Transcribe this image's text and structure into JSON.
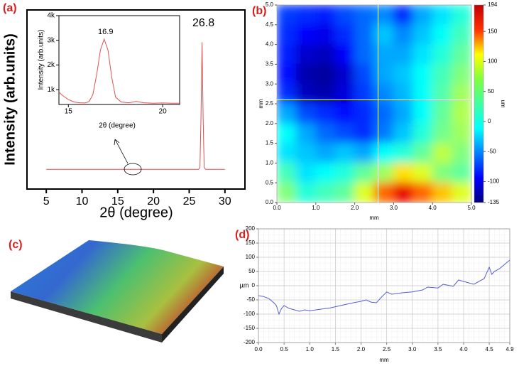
{
  "chart_data": [
    {
      "type": "line",
      "panel": "(a)",
      "x_label": "2θ (degree)",
      "y_label": "Intensity (arb.units)",
      "color": "#e05050",
      "x": [
        5,
        26.3,
        26.5,
        26.65,
        26.8,
        26.95,
        27.1,
        27.3,
        30
      ],
      "values": [
        11,
        11,
        12,
        40,
        82,
        40,
        12,
        11,
        11
      ],
      "xlim": [
        2.3,
        32.8
      ],
      "ylim": [
        0,
        100
      ],
      "xticks": [
        5,
        10,
        15,
        20,
        25,
        30
      ],
      "peak_label": "26.8",
      "inset": {
        "x_label": "2θ (degree)",
        "y_label": "Intensity (arb.units)",
        "color": "#e05050",
        "x": [
          14.5,
          14.7,
          15.0,
          15.3,
          15.6,
          15.9,
          16.1,
          16.3,
          16.5,
          16.7,
          16.9,
          17.1,
          17.3,
          17.5,
          17.8,
          18.2,
          18.6,
          19.0,
          19.5,
          20.0,
          20.5,
          20.9
        ],
        "values": [
          900,
          760,
          600,
          500,
          470,
          460,
          520,
          800,
          1600,
          2600,
          3050,
          2600,
          1500,
          700,
          500,
          470,
          520,
          470,
          450,
          460,
          450,
          450
        ],
        "xlim": [
          14.5,
          20.9
        ],
        "ylim": [
          400,
          4000
        ],
        "xticks": [
          15,
          20
        ],
        "yticks": [
          {
            "value": 1000,
            "label": "1k"
          },
          {
            "value": 2000,
            "label": "2k"
          },
          {
            "value": 3000,
            "label": "3k"
          },
          {
            "value": 4000,
            "label": "4k"
          }
        ],
        "peak_label": "16.9"
      }
    },
    {
      "type": "heatmap",
      "panel": "(b)",
      "x_label": "mm",
      "y_label": "mm",
      "colorbar_label": "um",
      "xlim": [
        0,
        5
      ],
      "ylim": [
        0,
        5
      ],
      "xticks": [
        {
          "value": 0,
          "label": "0.0"
        },
        {
          "value": 1,
          "label": "1.0"
        },
        {
          "value": 2,
          "label": "2.0"
        },
        {
          "value": 3,
          "label": "3.0"
        },
        {
          "value": 4,
          "label": "4.0"
        },
        {
          "value": 5,
          "label": "5.0"
        }
      ],
      "yticks": [
        {
          "value": 0,
          "label": "0.0"
        },
        0.5,
        {
          "value": 1,
          "label": "1.0"
        },
        1.5,
        {
          "value": 2,
          "label": "2.0"
        },
        2.5,
        {
          "value": 3,
          "label": "3.0"
        },
        3.5,
        {
          "value": 4,
          "label": "4.0"
        },
        4.5,
        {
          "value": 5,
          "label": "5.0"
        }
      ],
      "cursor": {
        "x": 2.6,
        "y": 2.6
      },
      "zlim": [
        -135,
        194
      ],
      "zticks": [
        194,
        150,
        100,
        50,
        0,
        -50,
        -100,
        -135
      ],
      "z": [
        [
          -75,
          -80,
          -85,
          -70,
          -60,
          -50,
          -80,
          -40,
          -20,
          0
        ],
        [
          -80,
          -95,
          -100,
          -80,
          -60,
          -30,
          -50,
          -30,
          -10,
          10
        ],
        [
          -85,
          -110,
          -115,
          -95,
          -60,
          -40,
          -40,
          -20,
          0,
          20
        ],
        [
          -90,
          -120,
          -125,
          -110,
          -70,
          -40,
          -30,
          -10,
          10,
          30
        ],
        [
          -80,
          -115,
          -120,
          -105,
          -75,
          -50,
          -35,
          -10,
          15,
          40
        ],
        [
          -40,
          -70,
          -80,
          -90,
          -80,
          -60,
          -40,
          -10,
          20,
          45
        ],
        [
          -10,
          -40,
          -60,
          -70,
          -80,
          -55,
          -30,
          0,
          25,
          40
        ],
        [
          -20,
          -30,
          -40,
          -30,
          -40,
          -10,
          0,
          20,
          50,
          30
        ],
        [
          10,
          -20,
          -10,
          0,
          20,
          40,
          80,
          60,
          30,
          20
        ],
        [
          30,
          0,
          10,
          20,
          60,
          120,
          160,
          120,
          90,
          60
        ]
      ]
    },
    {
      "type": "surface",
      "panel": "(c)"
    },
    {
      "type": "profile",
      "panel": "(d)",
      "x_label": "mm",
      "y_label": "µm",
      "color": "#5560d0",
      "x": [
        0,
        0.1,
        0.2,
        0.3,
        0.35,
        0.4,
        0.45,
        0.5,
        0.6,
        0.7,
        0.8,
        0.9,
        1.0,
        1.2,
        1.4,
        1.6,
        1.8,
        2.0,
        2.1,
        2.2,
        2.3,
        2.4,
        2.5,
        2.6,
        2.8,
        3.0,
        3.2,
        3.3,
        3.5,
        3.6,
        3.8,
        3.9,
        4.0,
        4.1,
        4.2,
        4.4,
        4.5,
        4.55,
        4.6,
        4.7,
        4.8,
        4.9
      ],
      "values": [
        -35,
        -38,
        -45,
        -60,
        -70,
        -100,
        -80,
        -70,
        -80,
        -85,
        -90,
        -85,
        -88,
        -83,
        -78,
        -70,
        -62,
        -55,
        -50,
        -58,
        -60,
        -40,
        -22,
        -30,
        -25,
        -22,
        -15,
        -5,
        -8,
        5,
        -2,
        20,
        15,
        10,
        5,
        25,
        65,
        40,
        50,
        60,
        75,
        90
      ],
      "xlim": [
        0,
        4.9
      ],
      "ylim": [
        -200,
        200
      ],
      "xticks": [
        {
          "value": 0,
          "label": "0.0"
        },
        0.5,
        {
          "value": 1,
          "label": "1.0"
        },
        1.5,
        {
          "value": 2,
          "label": "2.0"
        },
        2.5,
        {
          "value": 3,
          "label": "3.0"
        },
        3.5,
        {
          "value": 4,
          "label": "4.0"
        },
        4.5,
        4.9
      ],
      "yticks": [
        200,
        150,
        100,
        50,
        0,
        -50,
        -100,
        -150,
        -200
      ],
      "grid": true
    }
  ]
}
